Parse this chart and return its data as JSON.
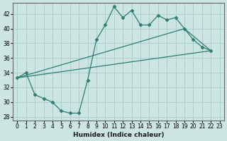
{
  "xlabel": "Humidex (Indice chaleur)",
  "ylabel": "",
  "bg_color": "#cce5e3",
  "grid_color": "#aacfcc",
  "line_color": "#2e7d6e",
  "xlim": [
    -0.5,
    23.5
  ],
  "ylim": [
    27.5,
    43.5
  ],
  "yticks": [
    28,
    30,
    32,
    34,
    36,
    38,
    40,
    42
  ],
  "xticks": [
    0,
    1,
    2,
    3,
    4,
    5,
    6,
    7,
    8,
    9,
    10,
    11,
    12,
    13,
    14,
    15,
    16,
    17,
    18,
    19,
    20,
    21,
    22,
    23
  ],
  "line1_x": [
    0,
    1,
    2,
    3,
    4,
    5,
    6,
    7,
    8,
    9,
    10,
    11,
    12,
    13,
    14,
    15,
    16,
    17,
    18,
    19,
    20,
    21,
    22
  ],
  "line1_y": [
    33.3,
    34.0,
    31.0,
    30.5,
    30.0,
    28.8,
    28.5,
    28.5,
    33.0,
    38.5,
    40.5,
    43.0,
    41.5,
    42.5,
    40.5,
    40.5,
    41.8,
    41.2,
    41.5,
    40.0,
    38.5,
    37.5,
    37.0
  ],
  "line2_x": [
    0,
    22
  ],
  "line2_y": [
    33.3,
    37.0
  ],
  "line3_x": [
    0,
    19,
    22
  ],
  "line3_y": [
    33.3,
    40.0,
    37.0
  ]
}
